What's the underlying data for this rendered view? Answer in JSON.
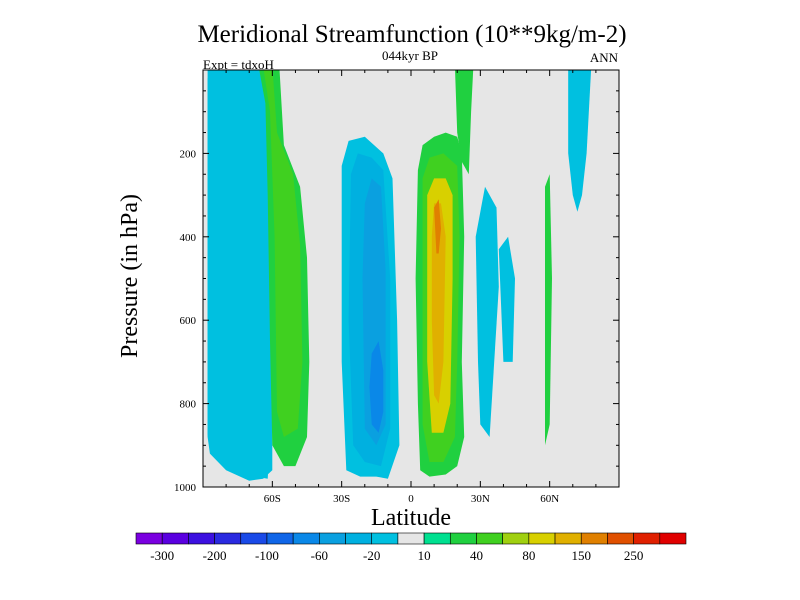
{
  "chart_data": {
    "type": "heatmap",
    "title": "Meridional Streamfunction (10**9kg/m-2)",
    "subtitle": "044kyr BP",
    "left_note": "Expt = tdxoH",
    "right_note": "ANN",
    "xlabel": "Latitude",
    "ylabel": "Pressure (in hPa)",
    "xlim": [
      -90,
      90
    ],
    "ylim": [
      1000,
      0
    ],
    "x_ticks": [
      {
        "value": -60,
        "label": "60S"
      },
      {
        "value": -30,
        "label": "30S"
      },
      {
        "value": 0,
        "label": "0"
      },
      {
        "value": 30,
        "label": "30N"
      },
      {
        "value": 60,
        "label": "60N"
      }
    ],
    "y_ticks": [
      {
        "value": 200,
        "label": "200"
      },
      {
        "value": 400,
        "label": "400"
      },
      {
        "value": 600,
        "label": "600"
      },
      {
        "value": 800,
        "label": "800"
      },
      {
        "value": 1000,
        "label": "1000"
      }
    ],
    "colorbar": {
      "levels": [
        -300,
        -250,
        -200,
        -150,
        -100,
        -80,
        -60,
        -40,
        -20,
        -10,
        10,
        20,
        40,
        60,
        80,
        100,
        150,
        200,
        250,
        300
      ],
      "colors": [
        "#7a00e0",
        "#5a00e0",
        "#3c10e0",
        "#2a2ae0",
        "#1a4ae8",
        "#1066e8",
        "#0a88e8",
        "#0aa0e0",
        "#00b0e0",
        "#00c0e0",
        "#e6e6e6",
        "#00e090",
        "#20d040",
        "#40d020",
        "#a0d010",
        "#d8d000",
        "#e0b000",
        "#e08000",
        "#e05000",
        "#e02000",
        "#e00000"
      ],
      "labels": [
        {
          "value": -300,
          "label": "-300"
        },
        {
          "value": -200,
          "label": "-200"
        },
        {
          "value": -100,
          "label": "-100"
        },
        {
          "value": -60,
          "label": "-60"
        },
        {
          "value": -20,
          "label": "-20"
        },
        {
          "value": 10,
          "label": "10"
        },
        {
          "value": 40,
          "label": "40"
        },
        {
          "value": 80,
          "label": "80"
        },
        {
          "value": 150,
          "label": "150"
        },
        {
          "value": 250,
          "label": "250"
        }
      ]
    },
    "regions": [
      {
        "name": "sh-outer-cell",
        "value": -20,
        "pts": [
          [
            -88,
            20
          ],
          [
            -78,
            20
          ],
          [
            -75,
            200
          ],
          [
            -74,
            600
          ],
          [
            -76,
            900
          ],
          [
            -72,
            970
          ],
          [
            -62,
            980
          ],
          [
            -60,
            800
          ],
          [
            -61,
            300
          ],
          [
            -63,
            10
          ],
          [
            -65,
            -10
          ],
          [
            -88,
            -10
          ],
          [
            -88,
            880
          ],
          [
            -87,
            920
          ],
          [
            -80,
            960
          ],
          [
            -70,
            985
          ],
          [
            -64,
            980
          ],
          [
            -60,
            960
          ],
          [
            -60,
            20
          ]
        ]
      },
      {
        "name": "sh-band-l",
        "value": -20,
        "pts": [
          [
            -88,
            20
          ],
          [
            -86,
            20
          ],
          [
            -85,
            300
          ],
          [
            -86,
            800
          ],
          [
            -88,
            880
          ]
        ]
      },
      {
        "name": "sh-ferrel",
        "value": 20,
        "pts": [
          [
            -66,
            -10
          ],
          [
            -57,
            -10
          ],
          [
            -55,
            180
          ],
          [
            -48,
            280
          ],
          [
            -45,
            450
          ],
          [
            -44,
            700
          ],
          [
            -45,
            880
          ],
          [
            -50,
            950
          ],
          [
            -55,
            950
          ],
          [
            -60,
            900
          ],
          [
            -61,
            650
          ],
          [
            -62,
            300
          ],
          [
            -63,
            80
          ]
        ]
      },
      {
        "name": "sh-ferrel-inner",
        "value": 40,
        "pts": [
          [
            -64,
            -10
          ],
          [
            -60,
            -10
          ],
          [
            -58,
            150
          ],
          [
            -51,
            250
          ],
          [
            -48,
            420
          ],
          [
            -47,
            700
          ],
          [
            -49,
            860
          ],
          [
            -55,
            880
          ],
          [
            -58,
            820
          ],
          [
            -59,
            400
          ],
          [
            -61,
            100
          ]
        ]
      },
      {
        "name": "sh-upper",
        "value": -10,
        "pts": [
          [
            -45,
            -10
          ],
          [
            -40,
            -10
          ],
          [
            -40,
            60
          ],
          [
            -33,
            90
          ],
          [
            -26,
            130
          ],
          [
            -20,
            180
          ],
          [
            -14,
            240
          ],
          [
            -12,
            280
          ],
          [
            -20,
            250
          ],
          [
            -32,
            190
          ],
          [
            -40,
            140
          ],
          [
            -44,
            100
          ]
        ]
      },
      {
        "name": "sh-hadley",
        "value": -20,
        "pts": [
          [
            -30,
            230
          ],
          [
            -27,
            170
          ],
          [
            -20,
            160
          ],
          [
            -12,
            200
          ],
          [
            -8,
            260
          ],
          [
            -6,
            600
          ],
          [
            -5,
            900
          ],
          [
            -10,
            980
          ],
          [
            -15,
            975
          ],
          [
            -22,
            975
          ],
          [
            -28,
            960
          ],
          [
            -30,
            700
          ]
        ]
      },
      {
        "name": "sh-hadley-2",
        "value": -40,
        "pts": [
          [
            -26,
            250
          ],
          [
            -23,
            200
          ],
          [
            -17,
            210
          ],
          [
            -12,
            240
          ],
          [
            -9,
            500
          ],
          [
            -9,
            860
          ],
          [
            -13,
            950
          ],
          [
            -20,
            940
          ],
          [
            -25,
            900
          ],
          [
            -27,
            600
          ]
        ]
      },
      {
        "name": "sh-hadley-3",
        "value": -60,
        "pts": [
          [
            -20,
            320
          ],
          [
            -17,
            260
          ],
          [
            -13,
            280
          ],
          [
            -11,
            480
          ],
          [
            -11,
            850
          ],
          [
            -15,
            900
          ],
          [
            -20,
            860
          ],
          [
            -21,
            500
          ]
        ]
      },
      {
        "name": "sh-hadley-core",
        "value": -80,
        "pts": [
          [
            -17,
            680
          ],
          [
            -14,
            650
          ],
          [
            -12,
            720
          ],
          [
            -12,
            820
          ],
          [
            -14,
            870
          ],
          [
            -17,
            850
          ],
          [
            -18,
            760
          ]
        ]
      },
      {
        "name": "nh-hadley",
        "value": 20,
        "pts": [
          [
            3,
            240
          ],
          [
            5,
            180
          ],
          [
            10,
            160
          ],
          [
            15,
            150
          ],
          [
            20,
            160
          ],
          [
            22,
            200
          ],
          [
            23,
            400
          ],
          [
            22,
            700
          ],
          [
            23,
            880
          ],
          [
            20,
            950
          ],
          [
            15,
            970
          ],
          [
            8,
            975
          ],
          [
            4,
            960
          ],
          [
            3,
            800
          ],
          [
            2,
            500
          ]
        ]
      },
      {
        "name": "nh-hadley-2",
        "value": 40,
        "pts": [
          [
            5,
            260
          ],
          [
            8,
            210
          ],
          [
            14,
            200
          ],
          [
            20,
            230
          ],
          [
            21,
            400
          ],
          [
            20,
            700
          ],
          [
            19,
            880
          ],
          [
            14,
            940
          ],
          [
            8,
            940
          ],
          [
            5,
            850
          ],
          [
            5,
            500
          ]
        ]
      },
      {
        "name": "nh-hadley-3",
        "value": 80,
        "pts": [
          [
            7,
            300
          ],
          [
            10,
            260
          ],
          [
            15,
            260
          ],
          [
            18,
            300
          ],
          [
            18,
            500
          ],
          [
            17,
            800
          ],
          [
            14,
            870
          ],
          [
            9,
            870
          ],
          [
            7,
            700
          ]
        ]
      },
      {
        "name": "nh-hadley-4",
        "value": 100,
        "pts": [
          [
            9,
            400
          ],
          [
            10,
            320
          ],
          [
            13,
            320
          ],
          [
            15,
            400
          ],
          [
            14,
            700
          ],
          [
            12,
            800
          ],
          [
            10,
            780
          ],
          [
            9,
            600
          ]
        ]
      },
      {
        "name": "nh-hadley-core",
        "value": 150,
        "pts": [
          [
            10,
            330
          ],
          [
            12,
            310
          ],
          [
            13,
            380
          ],
          [
            12,
            440
          ],
          [
            11,
            440
          ]
        ]
      },
      {
        "name": "nh-upper",
        "value": 20,
        "pts": [
          [
            19,
            -10
          ],
          [
            27,
            -10
          ],
          [
            26,
            100
          ],
          [
            25,
            250
          ],
          [
            22,
            220
          ],
          [
            20,
            150
          ]
        ]
      },
      {
        "name": "nh-ferrel",
        "value": -20,
        "pts": [
          [
            28,
            400
          ],
          [
            32,
            280
          ],
          [
            37,
            330
          ],
          [
            38,
            520
          ],
          [
            36,
            700
          ],
          [
            34,
            880
          ],
          [
            30,
            850
          ],
          [
            29,
            700
          ]
        ]
      },
      {
        "name": "nh-ferrel-2",
        "value": -20,
        "pts": [
          [
            38,
            430
          ],
          [
            42,
            400
          ],
          [
            45,
            500
          ],
          [
            44,
            700
          ],
          [
            40,
            700
          ]
        ]
      },
      {
        "name": "nh-polar",
        "value": 20,
        "pts": [
          [
            58,
            280
          ],
          [
            60,
            250
          ],
          [
            61,
            500
          ],
          [
            60,
            850
          ],
          [
            58,
            900
          ],
          [
            58,
            500
          ]
        ]
      },
      {
        "name": "nh-top",
        "value": -20,
        "pts": [
          [
            68,
            -10
          ],
          [
            78,
            -10
          ],
          [
            76,
            200
          ],
          [
            74,
            300
          ],
          [
            72,
            340
          ],
          [
            70,
            300
          ],
          [
            68,
            200
          ]
        ]
      }
    ]
  }
}
